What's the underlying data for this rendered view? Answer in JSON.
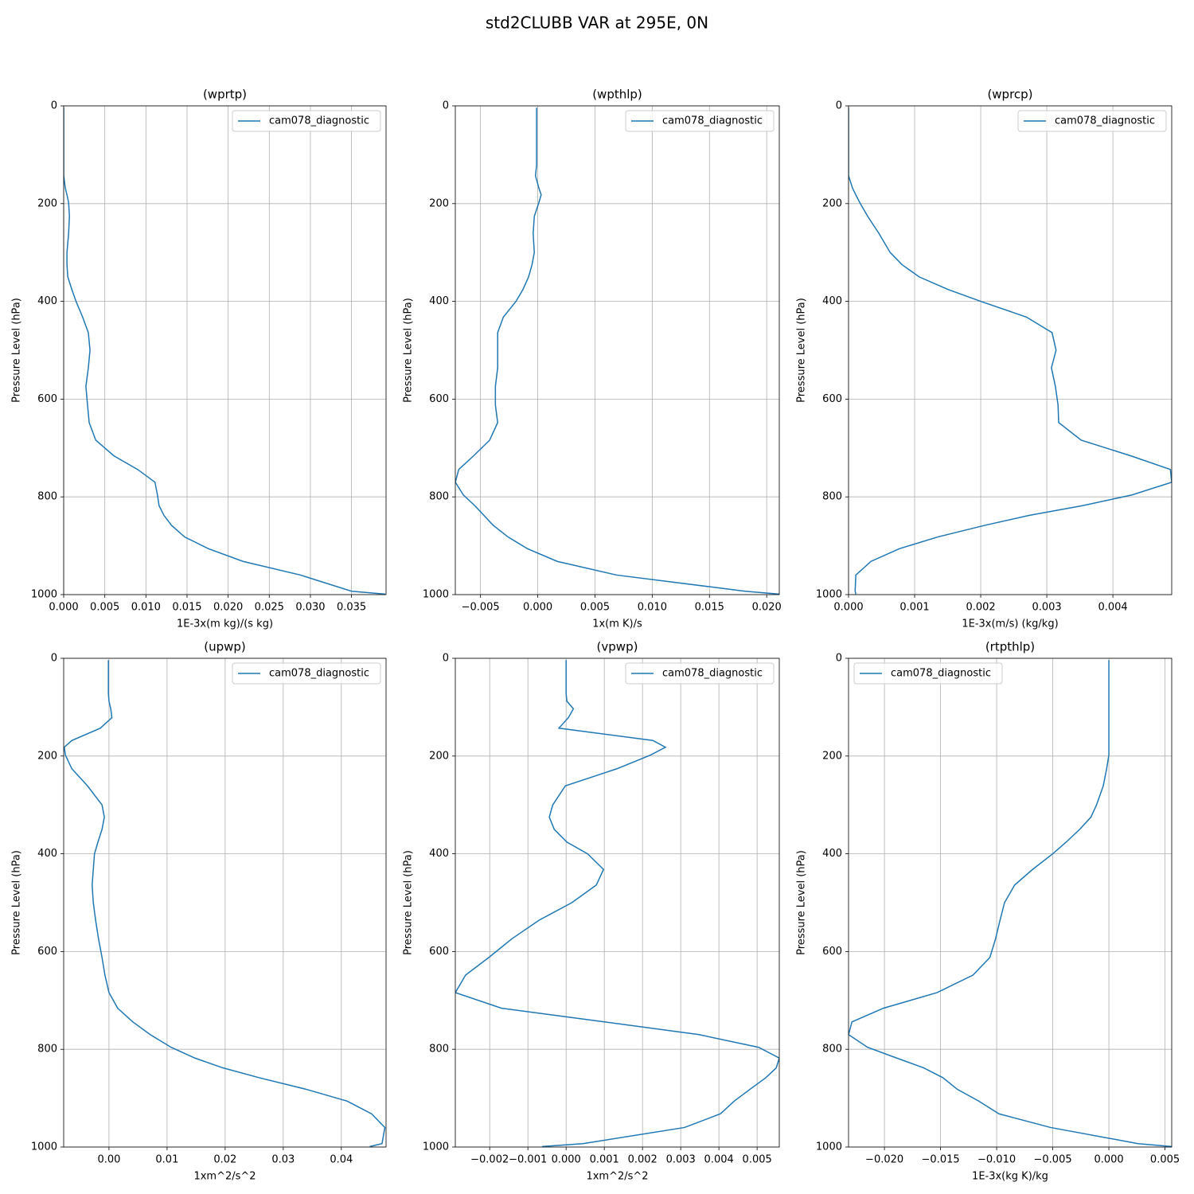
{
  "title": "std2CLUBB VAR at 295E, 0N",
  "chart_data": [
    {
      "type": "line",
      "title": "(wprtp)",
      "xlabel": "1E-3x(m kg)/(s kg)",
      "ylabel": "Pressure Level (hPa)",
      "y": [
        3.6,
        14.4,
        38.3,
        72.0,
        87.8,
        103.3,
        121.5,
        143.0,
        168.2,
        182,
        197.9,
        226,
        261,
        300,
        325,
        350,
        376,
        400,
        432,
        464,
        500,
        536,
        574,
        612,
        648,
        684,
        716,
        744,
        770,
        796,
        818,
        838,
        858,
        882,
        906,
        932,
        960,
        993,
        999
      ],
      "ylim": [
        1000,
        0
      ],
      "yticks": [
        0,
        200,
        400,
        600,
        800,
        1000
      ],
      "xlim": [
        0,
        0.0392
      ],
      "xticks": [
        {
          "value": 0,
          "label": "0.000"
        },
        0.005,
        {
          "value": 0.01,
          "label": "0.010"
        },
        0.015,
        {
          "value": 0.02,
          "label": "0.020"
        },
        0.025,
        {
          "value": 0.03,
          "label": "0.030"
        },
        0.035
      ],
      "grid": true,
      "legend": "upper right",
      "series": [
        {
          "name": "cam078_diagnostic",
          "color": "#1f77b4",
          "values": [
            0,
            0,
            0,
            0,
            0,
            0,
            0,
            0,
            0.0002,
            0.0004,
            0.0006,
            0.0007,
            0.0006,
            0.0004,
            0.0004,
            0.0005,
            0.001,
            0.0015,
            0.0023,
            0.003,
            0.0032,
            0.003,
            0.0027,
            0.0029,
            0.0031,
            0.0039,
            0.0061,
            0.009,
            0.0111,
            0.0114,
            0.0116,
            0.0122,
            0.0131,
            0.0147,
            0.0176,
            0.0218,
            0.0288,
            0.035,
            0.0391
          ]
        }
      ]
    },
    {
      "type": "line",
      "title": "(wpthlp)",
      "xlabel": "1x(m K)/s",
      "ylabel": "Pressure Level (hPa)",
      "y": [
        3.6,
        14.4,
        38.3,
        72.0,
        87.8,
        103.3,
        121.5,
        143.0,
        168.2,
        182,
        197.9,
        226,
        261,
        300,
        325,
        350,
        376,
        400,
        432,
        464,
        500,
        536,
        574,
        612,
        648,
        684,
        716,
        744,
        770,
        796,
        818,
        838,
        858,
        882,
        906,
        932,
        960,
        993,
        999
      ],
      "ylim": [
        1000,
        0
      ],
      "yticks": [
        0,
        200,
        400,
        600,
        800,
        1000
      ],
      "xlim": [
        -0.0072,
        0.0211
      ],
      "xticks": [
        {
          "value": -0.005,
          "label": "−0.005"
        },
        {
          "value": 0,
          "label": "0.000"
        },
        0.005,
        {
          "value": 0.01,
          "label": "0.010"
        },
        0.015,
        {
          "value": 0.02,
          "label": "0.020"
        }
      ],
      "grid": true,
      "legend": "upper right",
      "series": [
        {
          "name": "cam078_diagnostic",
          "color": "#1f77b4",
          "values": [
            -0.0001,
            -0.0001,
            -0.0001,
            -0.0001,
            -0.0001,
            -0.0001,
            -0.0001,
            -0.0002,
            0.0001,
            0.0003,
            0.0001,
            -0.0003,
            -0.0004,
            -0.0003,
            -0.0005,
            -0.0008,
            -0.0013,
            -0.0019,
            -0.003,
            -0.0035,
            -0.0035,
            -0.0035,
            -0.0037,
            -0.0037,
            -0.0035,
            -0.0042,
            -0.0056,
            -0.0069,
            -0.0072,
            -0.0065,
            -0.0055,
            -0.0047,
            -0.0039,
            -0.0026,
            -0.0009,
            0.0017,
            0.0069,
            0.0181,
            0.0211
          ]
        }
      ]
    },
    {
      "type": "line",
      "title": "(wprcp)",
      "xlabel": "1E-3x(m/s) (kg/kg)",
      "ylabel": "Pressure Level (hPa)",
      "y": [
        3.6,
        14.4,
        38.3,
        72.0,
        87.8,
        103.3,
        121.5,
        143.0,
        168.2,
        182,
        197.9,
        226,
        261,
        300,
        325,
        350,
        376,
        400,
        432,
        464,
        500,
        536,
        574,
        612,
        648,
        684,
        716,
        744,
        770,
        796,
        818,
        838,
        858,
        882,
        906,
        932,
        960,
        993,
        999
      ],
      "ylim": [
        1000,
        0
      ],
      "yticks": [
        0,
        200,
        400,
        600,
        800,
        1000
      ],
      "xlim": [
        0,
        0.00489
      ],
      "xticks": [
        {
          "value": 0,
          "label": "0.000"
        },
        0.001,
        0.002,
        0.003,
        0.004
      ],
      "grid": true,
      "legend": "upper right",
      "series": [
        {
          "name": "cam078_diagnostic",
          "color": "#1f77b4",
          "values": [
            0,
            0,
            0,
            0,
            0,
            0,
            0,
            0,
            6e-05,
            0.00011,
            0.00017,
            0.00029,
            0.00046,
            0.00063,
            0.00081,
            0.00107,
            0.00151,
            0.002,
            0.00269,
            0.00308,
            0.00314,
            0.00307,
            0.00313,
            0.00317,
            0.00318,
            0.00352,
            0.00427,
            0.00487,
            0.00489,
            0.00429,
            0.00354,
            0.00273,
            0.00207,
            0.00135,
            0.00077,
            0.00034,
            0.00011,
            0.0001,
            0.00011
          ]
        }
      ]
    },
    {
      "type": "line",
      "title": "(upwp)",
      "xlabel": "1xm^2/s^2",
      "ylabel": "Pressure Level (hPa)",
      "y": [
        3.6,
        14.4,
        38.3,
        72.0,
        87.8,
        103.3,
        121.5,
        143.0,
        168.2,
        182,
        197.9,
        226,
        261,
        300,
        325,
        350,
        376,
        400,
        432,
        464,
        500,
        536,
        574,
        612,
        648,
        684,
        716,
        744,
        770,
        796,
        818,
        838,
        858,
        882,
        906,
        932,
        960,
        993,
        999
      ],
      "ylim": [
        1000,
        0
      ],
      "yticks": [
        0,
        200,
        400,
        600,
        800,
        1000
      ],
      "xlim": [
        -0.0078,
        0.0477
      ],
      "xticks": [
        {
          "value": 0,
          "label": "0.00"
        },
        0.01,
        0.02,
        0.03,
        0.04
      ],
      "grid": true,
      "legend": "upper right",
      "series": [
        {
          "name": "cam078_diagnostic",
          "color": "#1f77b4",
          "values": [
            -0.0001,
            -0.0001,
            -0.0001,
            -0.0001,
            0,
            0.0003,
            0.0005,
            -0.0015,
            -0.0064,
            -0.0077,
            -0.0075,
            -0.0064,
            -0.0037,
            -0.0012,
            -0.0008,
            -0.0012,
            -0.0019,
            -0.0025,
            -0.0027,
            -0.0029,
            -0.0027,
            -0.0023,
            -0.0018,
            -0.0012,
            -0.0007,
            0,
            0.0015,
            0.0041,
            0.0071,
            0.0107,
            0.0148,
            0.0196,
            0.0258,
            0.034,
            0.041,
            0.0452,
            0.0475,
            0.047,
            0.0449
          ]
        }
      ]
    },
    {
      "type": "line",
      "title": "(vpwp)",
      "xlabel": "1xm^2/s^2",
      "ylabel": "Pressure Level (hPa)",
      "y": [
        3.6,
        14.4,
        38.3,
        72.0,
        87.8,
        103.3,
        121.5,
        143.0,
        168.2,
        182,
        197.9,
        226,
        261,
        300,
        325,
        350,
        376,
        400,
        432,
        464,
        500,
        536,
        574,
        612,
        648,
        684,
        716,
        744,
        770,
        796,
        818,
        838,
        858,
        882,
        906,
        932,
        960,
        993,
        999
      ],
      "ylim": [
        1000,
        0
      ],
      "yticks": [
        0,
        200,
        400,
        600,
        800,
        1000
      ],
      "xlim": [
        -0.0029,
        0.00558
      ],
      "xticks": [
        {
          "value": -0.002,
          "label": "−0.002"
        },
        {
          "value": -0.001,
          "label": "−0.001"
        },
        {
          "value": 0,
          "label": "0.000"
        },
        0.001,
        0.002,
        0.003,
        0.004,
        0.005
      ],
      "grid": true,
      "legend": "upper right",
      "series": [
        {
          "name": "cam078_diagnostic",
          "color": "#1f77b4",
          "values": [
            0,
            0,
            0,
            0,
            2e-05,
            0.00019,
            6e-05,
            -0.00019,
            0.00227,
            0.0026,
            0.00221,
            0.00133,
            -2e-05,
            -0.00035,
            -0.00044,
            -0.00031,
            2e-05,
            0.00056,
            0.00098,
            0.00079,
            0.00015,
            -0.00071,
            -0.00142,
            -0.00202,
            -0.00263,
            -0.0029,
            -0.00169,
            0.00102,
            0.00348,
            0.00504,
            0.00558,
            0.0055,
            0.00523,
            0.00481,
            0.0044,
            0.00404,
            0.0031,
            0.00044,
            -0.00063
          ]
        }
      ]
    },
    {
      "type": "line",
      "title": "(rtpthlp)",
      "xlabel": "1E-3x(kg K)/kg",
      "ylabel": "Pressure Level (hPa)",
      "y": [
        3.6,
        14.4,
        38.3,
        72.0,
        87.8,
        103.3,
        121.5,
        143.0,
        168.2,
        182,
        197.9,
        226,
        261,
        300,
        325,
        350,
        376,
        400,
        432,
        464,
        500,
        536,
        574,
        612,
        648,
        684,
        716,
        744,
        770,
        796,
        818,
        838,
        858,
        882,
        906,
        932,
        960,
        993,
        999
      ],
      "ylim": [
        1000,
        0
      ],
      "yticks": [
        0,
        200,
        400,
        600,
        800,
        1000
      ],
      "xlim": [
        -0.0232,
        0.0056
      ],
      "xticks": [
        {
          "value": -0.02,
          "label": "−0.020"
        },
        {
          "value": -0.015,
          "label": "−0.015"
        },
        {
          "value": -0.01,
          "label": "−0.010"
        },
        {
          "value": -0.005,
          "label": "−0.005"
        },
        {
          "value": 0,
          "label": "0.000"
        },
        0.005
      ],
      "grid": true,
      "legend": "upper left",
      "series": [
        {
          "name": "cam078_diagnostic",
          "color": "#1f77b4",
          "values": [
            0,
            0,
            0,
            0,
            0,
            0,
            0,
            0,
            0,
            0,
            0,
            -0.0002,
            -0.0005,
            -0.0011,
            -0.0016,
            -0.0026,
            -0.0038,
            -0.005,
            -0.0068,
            -0.0084,
            -0.0093,
            -0.0097,
            -0.0101,
            -0.0106,
            -0.0121,
            -0.0153,
            -0.0201,
            -0.0229,
            -0.0232,
            -0.0215,
            -0.0189,
            -0.0165,
            -0.0148,
            -0.0135,
            -0.0116,
            -0.0098,
            -0.0052,
            0.0026,
            0.0056
          ]
        }
      ]
    }
  ]
}
